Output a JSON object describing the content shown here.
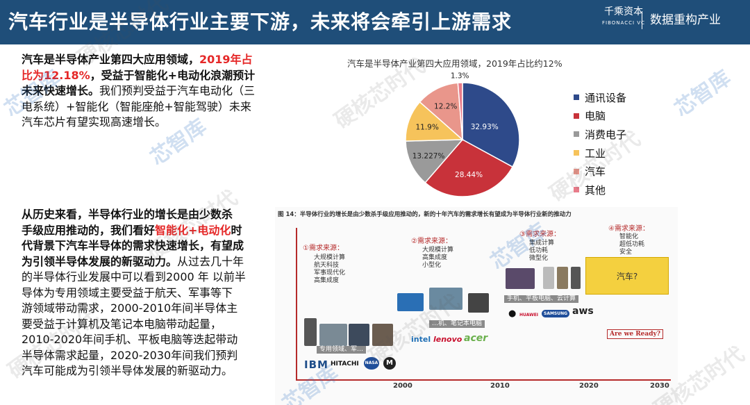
{
  "header": {
    "title": "汽车行业是半导体行业主要下游，未来将会牵引上游需求",
    "brand_name": "千乘资本",
    "brand_sub": "FIBONACCI VC",
    "brand_slogan": "数据重构产业",
    "bg_color": "#1f4e79"
  },
  "para1": {
    "line1_a": "汽车是半导体产业第四大应用领域，",
    "line1_b": "2019年占",
    "line2_a": "比为12.18%",
    "line2_b": "，受益于智能化+电动化浪潮预计",
    "line3_a": "未来快速增长。",
    "line3_b": "我们预判受益于汽车电动化（三",
    "line4": "电系统）+智能化（智能座舱+智能驾驶）未来",
    "line5": "汽车芯片有望实现高速增长。"
  },
  "para2": {
    "line1": "从历史来看，半导体行业的增长是由少数杀",
    "line2_a": "手级应用推动的，我们看好",
    "line2_b": "智能化+电动化",
    "line2_c": "时",
    "line3": "代背景下汽车半导体的需求快速增长，有望成",
    "line4_a": "为引领半导体发展的新驱动力。",
    "line4_b": "从过去几十年",
    "line5": "的半导体行业发展中可以看到2000 年 以前半",
    "line6": "导体为专用领域主要受益于航天、军事等下",
    "line7": "游领域带动需求，2000-2010年间半导体主",
    "line8": "要受益于计算机及笔记本电脑带动起量，",
    "line9": "2010-2020年间手机、平板电脑等迭起带动",
    "line10": "半导体需求起量，2020-2030年间我们预判",
    "line11": "汽车可能成为引领半导体发展的新驱动力。"
  },
  "chart_data": {
    "type": "pie",
    "title": "汽车是半导体产业第四大应用领域，2019年占比约12%",
    "slices": [
      {
        "label": "通讯设备",
        "value": 32.93,
        "value_label": "32.93%",
        "color": "#2e4a8a"
      },
      {
        "label": "电脑",
        "value": 28.44,
        "value_label": "28.44%",
        "color": "#c8323a"
      },
      {
        "label": "消费电子",
        "value": 13.227,
        "value_label": "13.227%",
        "color": "#9a9a9a"
      },
      {
        "label": "工业",
        "value": 11.9,
        "value_label": "11.9%",
        "color": "#f6c35b"
      },
      {
        "label": "汽车",
        "value": 12.2,
        "value_label": "12.2%",
        "color": "#e9968b"
      },
      {
        "label": "其他",
        "value": 1.3,
        "value_label": "1.3%",
        "color": "#e87c8a"
      }
    ],
    "legend_position": "right"
  },
  "figure": {
    "caption": "图 14：半导体行业的增长是由少数杀手级应用推动的，新的十年汽车的需求增长有望成为半导体行业新的推动力",
    "stage1": {
      "title": "①需求来源：",
      "items": "大规模计算\n航天科技\n军事现代化\n高集成度",
      "label": "专用领域、军…"
    },
    "stage2": {
      "title": "②需求来源：",
      "items": "大规模计算\n高集成度\n小型化",
      "label": "…机、笔记本电脑"
    },
    "stage3": {
      "title": "③需求来源：",
      "items": "集成计算\n低功耗\n微型化",
      "label": "手机、平板电脑、云计算"
    },
    "stage4": {
      "title": "④需求来源：",
      "items": "智能化\n超低功耗\n安全"
    },
    "car_box": "汽车?",
    "ready": "Are we Ready?",
    "years": [
      "2000",
      "2010",
      "2020",
      "2030"
    ],
    "logos": {
      "ibm": "IBM",
      "hitachi": "HITACHI",
      "nasa": "NASA",
      "intel": "intel",
      "lenovo": "lenovo",
      "acer": "acer",
      "huawei": "HUAWEI",
      "samsung": "SAMSUNG",
      "aws": "aws",
      "intel_small": "intel"
    }
  },
  "watermarks": {
    "a": "硬核芯时代",
    "b": "芯智库"
  }
}
